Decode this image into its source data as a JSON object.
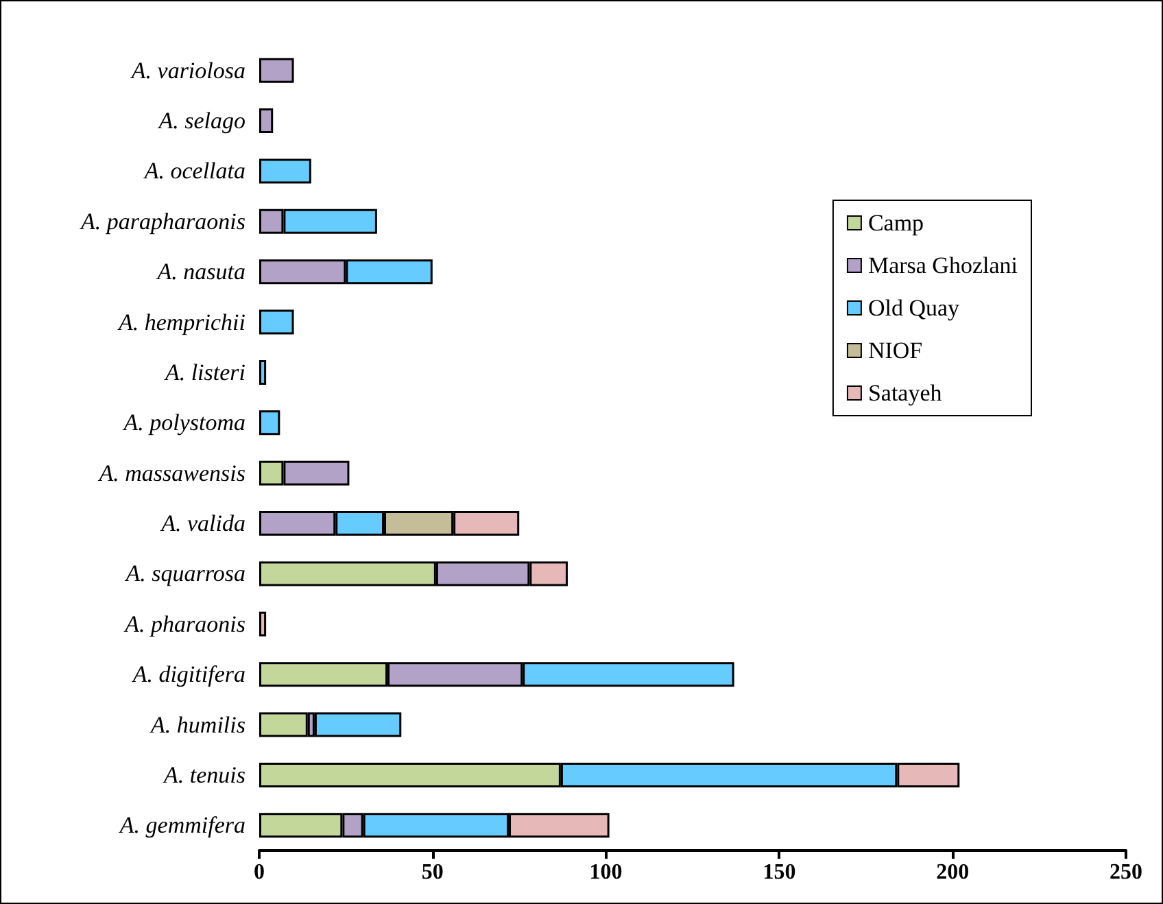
{
  "chart_data": {
    "type": "bar",
    "orientation": "horizontal",
    "stacked": true,
    "categories": [
      "A. variolosa",
      "A. selago",
      "A. ocellata",
      "A. parapharaonis",
      "A. nasuta",
      "A. hemprichii",
      "A. listeri",
      "A. polystoma",
      "A. massawensis",
      "A. valida",
      "A. squarrosa",
      "A. pharaonis",
      "A. digitifera",
      "A. humilis",
      "A. tenuis",
      "A. gemmifera"
    ],
    "series": [
      {
        "name": "Camp",
        "color": "#c4d79b",
        "values": [
          null,
          null,
          null,
          null,
          null,
          null,
          null,
          null,
          7,
          null,
          51,
          null,
          37,
          14,
          87,
          24
        ]
      },
      {
        "name": "Marsa Ghozlani",
        "color": "#b3a2c7",
        "values": [
          10,
          4,
          null,
          7,
          25,
          null,
          null,
          null,
          19,
          22,
          27,
          null,
          39,
          2,
          null,
          6
        ]
      },
      {
        "name": "Old Quay",
        "color": "#66ccff",
        "values": [
          null,
          null,
          15,
          27,
          25,
          10,
          2,
          6,
          null,
          14,
          null,
          null,
          61,
          25,
          97,
          42
        ]
      },
      {
        "name": "NIOF",
        "color": "#c4bd97",
        "values": [
          null,
          null,
          null,
          null,
          null,
          null,
          null,
          null,
          null,
          20,
          null,
          null,
          null,
          null,
          null,
          null
        ]
      },
      {
        "name": "Satayeh",
        "color": "#e6b9b8",
        "values": [
          null,
          null,
          null,
          null,
          null,
          null,
          null,
          null,
          null,
          19,
          11,
          2,
          null,
          null,
          18,
          29
        ]
      }
    ],
    "xlim": [
      0,
      250
    ],
    "xticks": [
      0,
      50,
      100,
      150,
      200,
      250
    ],
    "grid": false,
    "legend": "right"
  }
}
